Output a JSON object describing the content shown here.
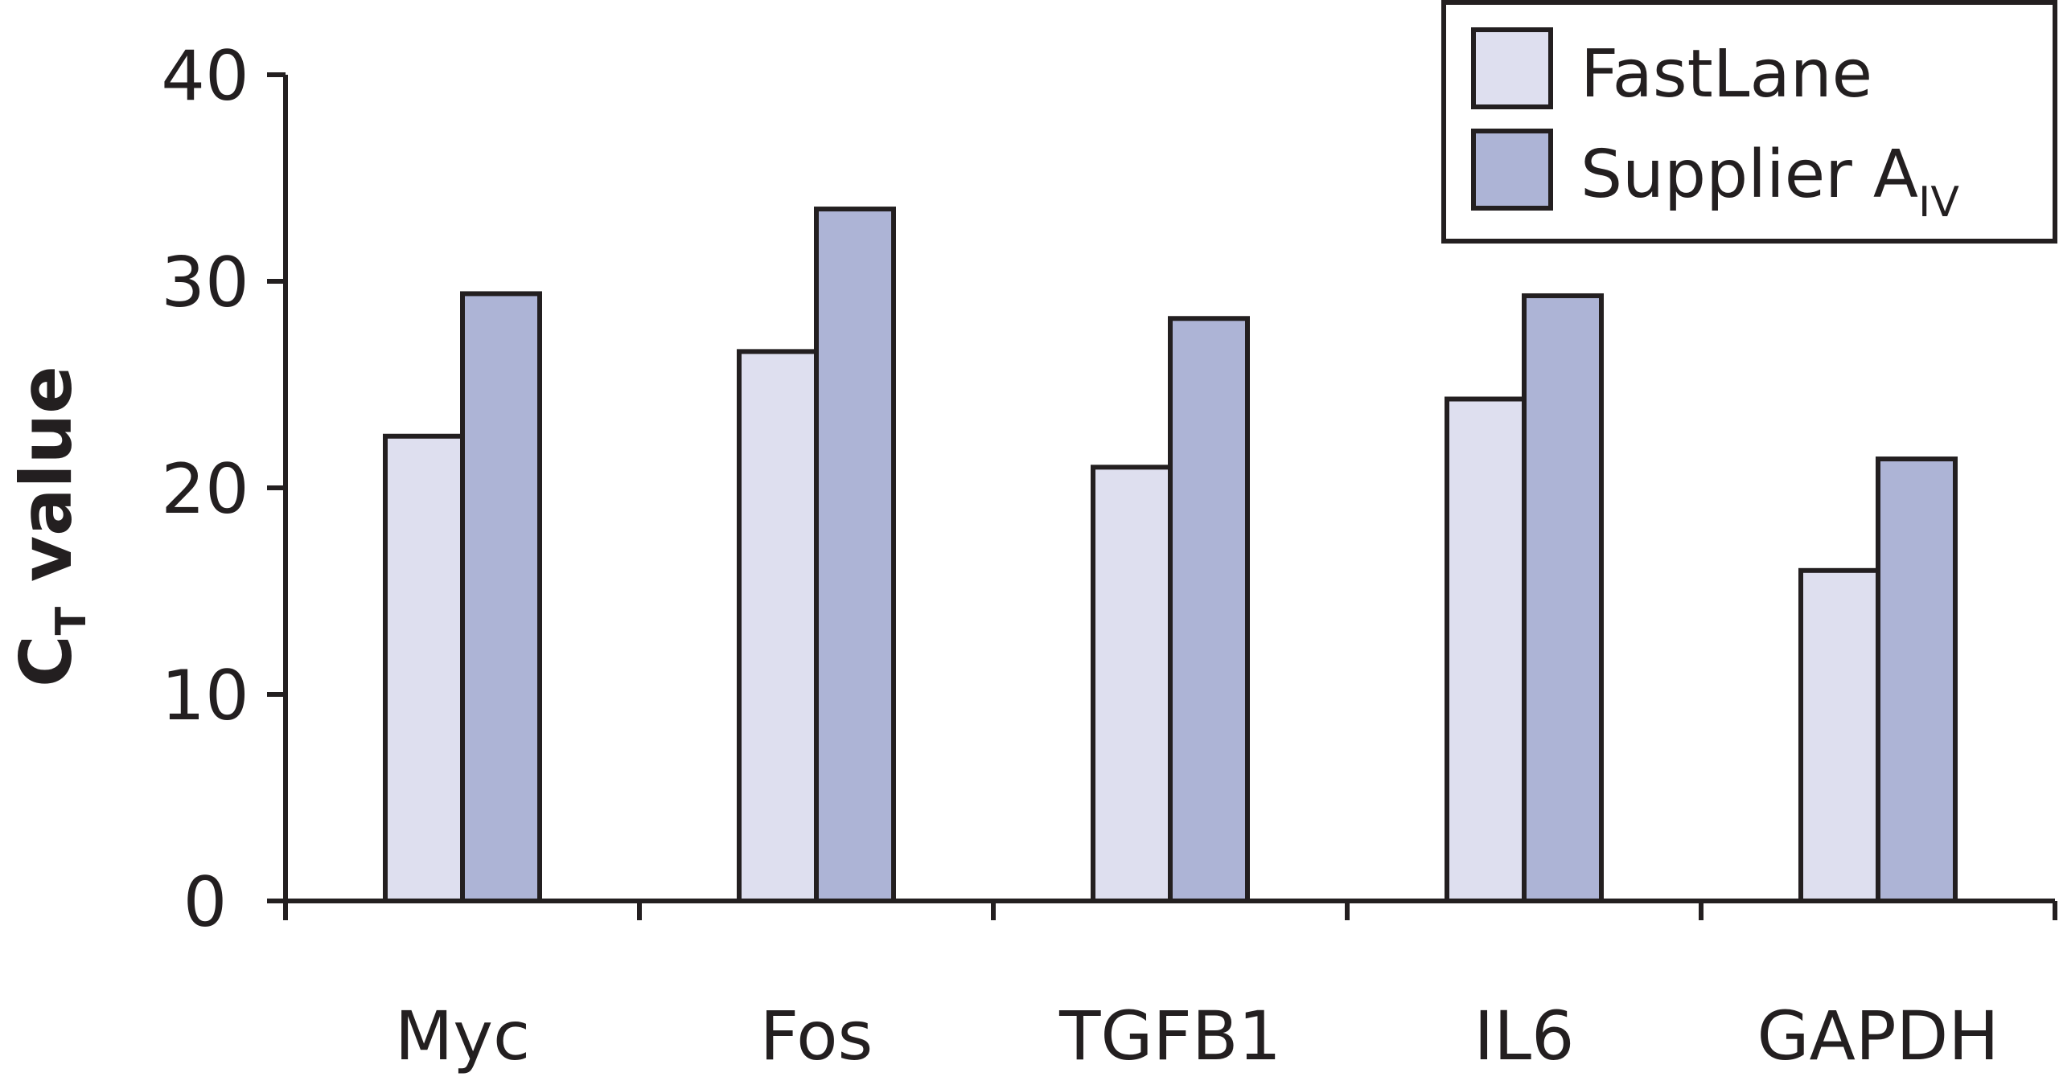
{
  "chart_data": {
    "type": "bar",
    "categories": [
      "Myc",
      "Fos",
      "TGFB1",
      "IL6",
      "GAPDH"
    ],
    "series": [
      {
        "name": "FastLane",
        "values": [
          22.5,
          26.6,
          21.0,
          24.3,
          16.0
        ],
        "color": "#dedfef"
      },
      {
        "name": "Supplier A",
        "name_subscript": "IV",
        "values": [
          29.4,
          33.5,
          28.2,
          29.3,
          21.4
        ],
        "color": "#adb4d6"
      }
    ],
    "title": "",
    "xlabel": "",
    "ylabel": "C",
    "ylabel_subscript": "T",
    "ylabel_suffix": " value",
    "ylim": [
      0,
      40
    ],
    "yticks": [
      0,
      10,
      20,
      30,
      40
    ],
    "grid": false,
    "legend": "top-right"
  }
}
